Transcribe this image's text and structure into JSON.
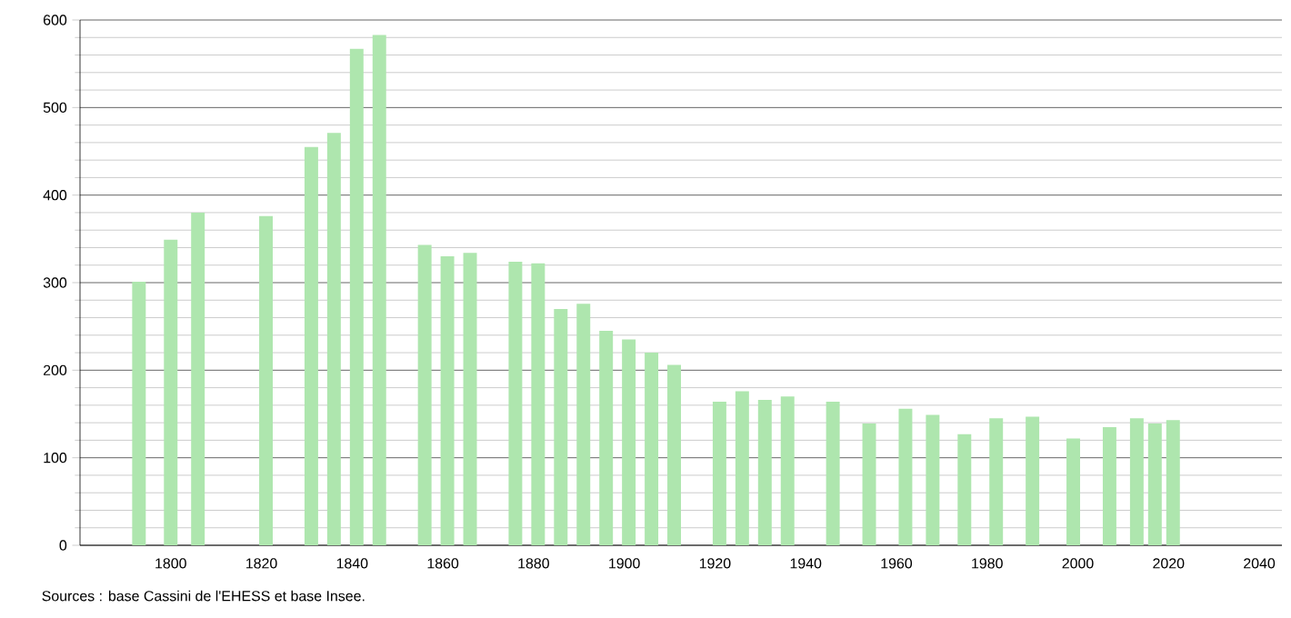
{
  "chart_data": {
    "type": "bar",
    "x": [
      1793,
      1800,
      1806,
      1821,
      1831,
      1836,
      1841,
      1846,
      1856,
      1861,
      1866,
      1876,
      1881,
      1886,
      1891,
      1896,
      1901,
      1906,
      1911,
      1921,
      1926,
      1931,
      1936,
      1946,
      1954,
      1962,
      1968,
      1975,
      1982,
      1990,
      1999,
      2007,
      2013,
      2017,
      2021
    ],
    "values": [
      301,
      349,
      380,
      376,
      455,
      471,
      567,
      583,
      343,
      330,
      334,
      324,
      322,
      270,
      276,
      245,
      235,
      220,
      206,
      164,
      176,
      166,
      170,
      164,
      139,
      156,
      149,
      127,
      145,
      147,
      122,
      135,
      145,
      139,
      143
    ],
    "color": "#aee6ae",
    "xlim": [
      1780,
      2045
    ],
    "xticks": [
      1800,
      1820,
      1840,
      1860,
      1880,
      1900,
      1920,
      1940,
      1960,
      1980,
      2000,
      2020,
      2040
    ],
    "ylim": [
      0,
      600
    ],
    "yticks": [
      0,
      100,
      200,
      300,
      400,
      500,
      600
    ],
    "grid": true,
    "annotations": [
      "Sources : base Cassini de l'EHESS et base Insee."
    ]
  }
}
